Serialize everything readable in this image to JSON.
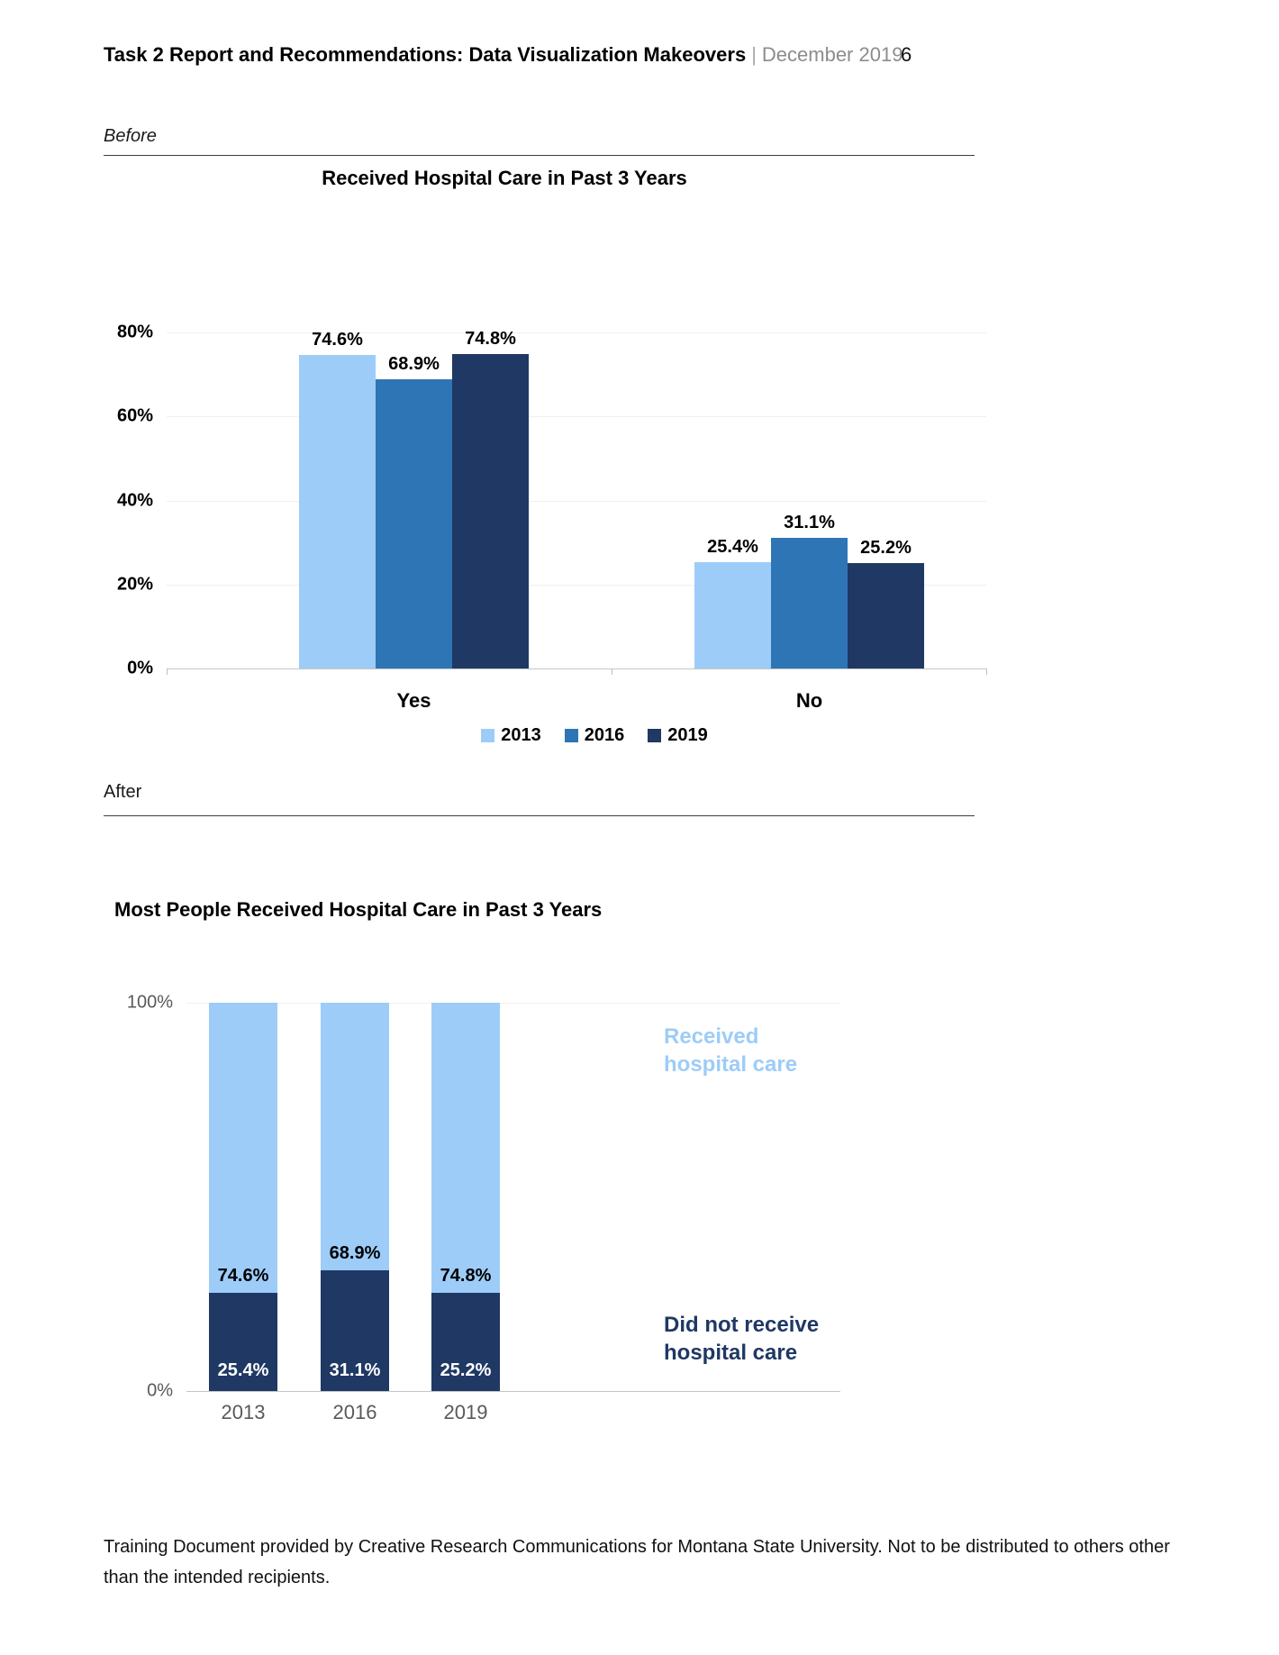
{
  "header": {
    "title": "Task 2 Report and Recommendations: Data Visualization Makeovers",
    "separator": "|",
    "date": "December 2019",
    "page_number": "6"
  },
  "sections": {
    "before_label": "Before",
    "after_label": "After"
  },
  "colors": {
    "light_blue": "#9DCCF8",
    "medium_blue": "#2E75B6",
    "dark_navy": "#1F3864",
    "gridline": "#EFEFEF",
    "axis": "#C6C6C6",
    "gray_text": "#595959",
    "date_gray": "#8C8C8C"
  },
  "chart_data": [
    {
      "type": "bar",
      "title": "Received Hospital Care in Past 3 Years",
      "categories": [
        "Yes",
        "No"
      ],
      "series": [
        {
          "name": "2013",
          "color": "#9DCCF8",
          "values": [
            74.6,
            25.4
          ],
          "labels": [
            "74.6%",
            "25.4%"
          ]
        },
        {
          "name": "2016",
          "color": "#2E75B6",
          "values": [
            68.9,
            31.1
          ],
          "labels": [
            "68.9%",
            "31.1%"
          ]
        },
        {
          "name": "2019",
          "color": "#1F3864",
          "values": [
            74.8,
            25.2
          ],
          "labels": [
            "74.8%",
            "25.2%"
          ]
        }
      ],
      "xlabel": "",
      "ylabel": "",
      "ylim": [
        0,
        80
      ],
      "grid": true,
      "legend_position": "bottom",
      "y_ticks": [
        {
          "label": "80%",
          "value": 80
        },
        {
          "label": "60%",
          "value": 60
        },
        {
          "label": "40%",
          "value": 40
        },
        {
          "label": "20%",
          "value": 20
        },
        {
          "label": "0%",
          "value": 0
        }
      ]
    },
    {
      "type": "bar",
      "stacked": true,
      "title": "Most People Received Hospital Care in Past 3 Years",
      "categories": [
        "2013",
        "2016",
        "2019"
      ],
      "series": [
        {
          "name": "Did not receive hospital care",
          "color": "#1F3864",
          "values": [
            25.4,
            31.1,
            25.2
          ],
          "labels": [
            "25.4%",
            "31.1%",
            "25.2%"
          ]
        },
        {
          "name": "Received hospital care",
          "color": "#9DCCF8",
          "values": [
            74.6,
            68.9,
            74.8
          ],
          "labels": [
            "74.6%",
            "68.9%",
            "74.8%"
          ]
        }
      ],
      "xlabel": "",
      "ylabel": "",
      "ylim": [
        0,
        100
      ],
      "grid": false,
      "legend_position": "right-annotations",
      "y_ticks": [
        {
          "label": "100%",
          "value": 100
        },
        {
          "label": "0%",
          "value": 0
        }
      ],
      "annotations": [
        {
          "text": "Received hospital care",
          "color": "#9DCCF8"
        },
        {
          "text": "Did not receive hospital care",
          "color": "#1F3864"
        }
      ]
    }
  ],
  "footer": {
    "text": "Training Document provided by Creative Research Communications for Montana State University. Not to be distributed to others other than the intended recipients."
  }
}
